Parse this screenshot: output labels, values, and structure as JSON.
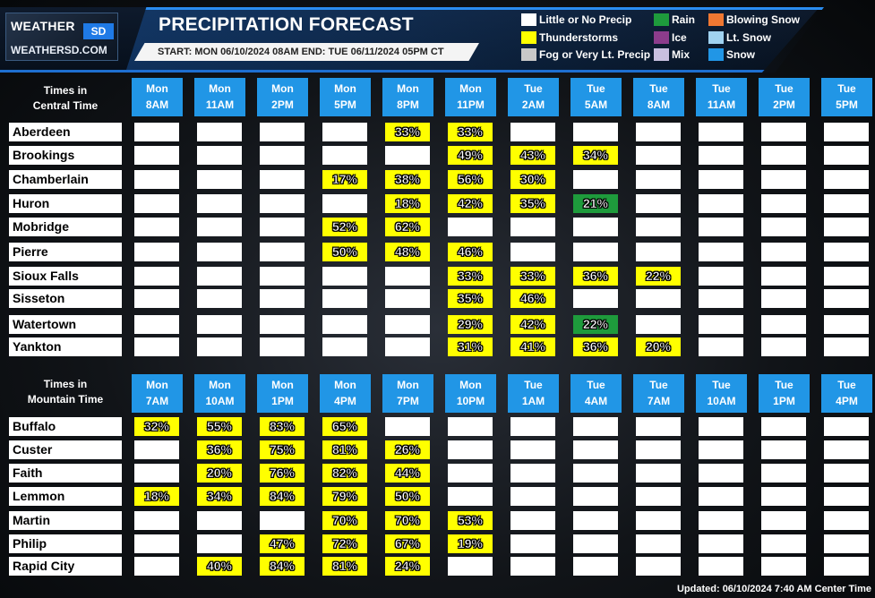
{
  "header": {
    "logo_weather": "WEATHER",
    "logo_sd": "SD",
    "logo_site": "WEATHERSD.COM",
    "title": "PRECIPITATION FORECAST",
    "date_range": "START: MON 06/10/2024 08AM  END: TUE 06/11/2024 05PM CT"
  },
  "legend": [
    {
      "label": "Little or No Precip",
      "color": "#ffffff"
    },
    {
      "label": "Thunderstorms",
      "color": "#ffff00"
    },
    {
      "label": "Fog or Very Lt. Precip",
      "color": "#c8c8c8"
    },
    {
      "label": "Rain",
      "color": "#1e9b3c"
    },
    {
      "label": "Ice",
      "color": "#8c3c8c"
    },
    {
      "label": "Mix",
      "color": "#c8c0e0"
    },
    {
      "label": "Blowing Snow",
      "color": "#f07832"
    },
    {
      "label": "Lt. Snow",
      "color": "#a0d2f0"
    },
    {
      "label": "Snow",
      "color": "#2196e6"
    }
  ],
  "colors": {
    "none": "#ffffff",
    "thunderstorms": "#ffff00",
    "rain": "#1e9b3c",
    "header_blue": "#2196e6"
  },
  "central": {
    "corner_line1": "Times in",
    "corner_line2": "Central Time",
    "columns": [
      {
        "day": "Mon",
        "time": "8AM"
      },
      {
        "day": "Mon",
        "time": "11AM"
      },
      {
        "day": "Mon",
        "time": "2PM"
      },
      {
        "day": "Mon",
        "time": "5PM"
      },
      {
        "day": "Mon",
        "time": "8PM"
      },
      {
        "day": "Mon",
        "time": "11PM"
      },
      {
        "day": "Tue",
        "time": "2AM"
      },
      {
        "day": "Tue",
        "time": "5AM"
      },
      {
        "day": "Tue",
        "time": "8AM"
      },
      {
        "day": "Tue",
        "time": "11AM"
      },
      {
        "day": "Tue",
        "time": "2PM"
      },
      {
        "day": "Tue",
        "time": "5PM"
      }
    ],
    "rows": [
      {
        "name": "Aberdeen",
        "cells": [
          [
            "",
            ""
          ],
          [
            "",
            ""
          ],
          [
            "",
            ""
          ],
          [
            "",
            ""
          ],
          [
            "33%",
            "T"
          ],
          [
            "33%",
            "T"
          ],
          [
            "",
            ""
          ],
          [
            "",
            ""
          ],
          [
            "",
            ""
          ],
          [
            "",
            ""
          ],
          [
            "",
            ""
          ],
          [
            "",
            ""
          ]
        ]
      },
      {
        "name": "Brookings",
        "cells": [
          [
            "",
            ""
          ],
          [
            "",
            ""
          ],
          [
            "",
            ""
          ],
          [
            "",
            ""
          ],
          [
            "",
            ""
          ],
          [
            "49%",
            "T"
          ],
          [
            "43%",
            "T"
          ],
          [
            "34%",
            "T"
          ],
          [
            "",
            ""
          ],
          [
            "",
            ""
          ],
          [
            "",
            ""
          ],
          [
            "",
            ""
          ]
        ]
      },
      {
        "name": "Chamberlain",
        "cells": [
          [
            "",
            ""
          ],
          [
            "",
            ""
          ],
          [
            "",
            ""
          ],
          [
            "17%",
            "T"
          ],
          [
            "38%",
            "T"
          ],
          [
            "56%",
            "T"
          ],
          [
            "30%",
            "T"
          ],
          [
            "",
            ""
          ],
          [
            "",
            ""
          ],
          [
            "",
            ""
          ],
          [
            "",
            ""
          ],
          [
            "",
            ""
          ]
        ]
      },
      {
        "name": "Huron",
        "cells": [
          [
            "",
            ""
          ],
          [
            "",
            ""
          ],
          [
            "",
            ""
          ],
          [
            "",
            ""
          ],
          [
            "18%",
            "T"
          ],
          [
            "42%",
            "T"
          ],
          [
            "35%",
            "T"
          ],
          [
            "21%",
            "R"
          ],
          [
            "",
            ""
          ],
          [
            "",
            ""
          ],
          [
            "",
            ""
          ],
          [
            "",
            ""
          ]
        ]
      },
      {
        "name": "Mobridge",
        "cells": [
          [
            "",
            ""
          ],
          [
            "",
            ""
          ],
          [
            "",
            ""
          ],
          [
            "52%",
            "T"
          ],
          [
            "62%",
            "T"
          ],
          [
            "",
            ""
          ],
          [
            "",
            ""
          ],
          [
            "",
            ""
          ],
          [
            "",
            ""
          ],
          [
            "",
            ""
          ],
          [
            "",
            ""
          ],
          [
            "",
            ""
          ]
        ]
      },
      {
        "name": "Pierre",
        "cells": [
          [
            "",
            ""
          ],
          [
            "",
            ""
          ],
          [
            "",
            ""
          ],
          [
            "50%",
            "T"
          ],
          [
            "48%",
            "T"
          ],
          [
            "46%",
            "T"
          ],
          [
            "",
            ""
          ],
          [
            "",
            ""
          ],
          [
            "",
            ""
          ],
          [
            "",
            ""
          ],
          [
            "",
            ""
          ],
          [
            "",
            ""
          ]
        ]
      },
      {
        "name": "Sioux Falls",
        "cells": [
          [
            "",
            ""
          ],
          [
            "",
            ""
          ],
          [
            "",
            ""
          ],
          [
            "",
            ""
          ],
          [
            "",
            ""
          ],
          [
            "33%",
            "T"
          ],
          [
            "33%",
            "T"
          ],
          [
            "36%",
            "T"
          ],
          [
            "22%",
            "T"
          ],
          [
            "",
            ""
          ],
          [
            "",
            ""
          ],
          [
            "",
            ""
          ]
        ]
      },
      {
        "name": "Sisseton",
        "cells": [
          [
            "",
            ""
          ],
          [
            "",
            ""
          ],
          [
            "",
            ""
          ],
          [
            "",
            ""
          ],
          [
            "",
            ""
          ],
          [
            "35%",
            "T"
          ],
          [
            "46%",
            "T"
          ],
          [
            "",
            ""
          ],
          [
            "",
            ""
          ],
          [
            "",
            ""
          ],
          [
            "",
            ""
          ],
          [
            "",
            ""
          ]
        ]
      },
      {
        "name": "Watertown",
        "cells": [
          [
            "",
            ""
          ],
          [
            "",
            ""
          ],
          [
            "",
            ""
          ],
          [
            "",
            ""
          ],
          [
            "",
            ""
          ],
          [
            "29%",
            "T"
          ],
          [
            "42%",
            "T"
          ],
          [
            "22%",
            "R"
          ],
          [
            "",
            ""
          ],
          [
            "",
            ""
          ],
          [
            "",
            ""
          ],
          [
            "",
            ""
          ]
        ]
      },
      {
        "name": "Yankton",
        "cells": [
          [
            "",
            ""
          ],
          [
            "",
            ""
          ],
          [
            "",
            ""
          ],
          [
            "",
            ""
          ],
          [
            "",
            ""
          ],
          [
            "31%",
            "T"
          ],
          [
            "41%",
            "T"
          ],
          [
            "36%",
            "T"
          ],
          [
            "20%",
            "T"
          ],
          [
            "",
            ""
          ],
          [
            "",
            ""
          ],
          [
            "",
            ""
          ]
        ]
      }
    ]
  },
  "mountain": {
    "corner_line1": "Times in",
    "corner_line2": "Mountain Time",
    "columns": [
      {
        "day": "Mon",
        "time": "7AM"
      },
      {
        "day": "Mon",
        "time": "10AM"
      },
      {
        "day": "Mon",
        "time": "1PM"
      },
      {
        "day": "Mon",
        "time": "4PM"
      },
      {
        "day": "Mon",
        "time": "7PM"
      },
      {
        "day": "Mon",
        "time": "10PM"
      },
      {
        "day": "Tue",
        "time": "1AM"
      },
      {
        "day": "Tue",
        "time": "4AM"
      },
      {
        "day": "Tue",
        "time": "7AM"
      },
      {
        "day": "Tue",
        "time": "10AM"
      },
      {
        "day": "Tue",
        "time": "1PM"
      },
      {
        "day": "Tue",
        "time": "4PM"
      }
    ],
    "rows": [
      {
        "name": "Buffalo",
        "cells": [
          [
            "32%",
            "T"
          ],
          [
            "55%",
            "T"
          ],
          [
            "83%",
            "T"
          ],
          [
            "65%",
            "T"
          ],
          [
            "",
            ""
          ],
          [
            "",
            ""
          ],
          [
            "",
            ""
          ],
          [
            "",
            ""
          ],
          [
            "",
            ""
          ],
          [
            "",
            ""
          ],
          [
            "",
            ""
          ],
          [
            "",
            ""
          ]
        ]
      },
      {
        "name": "Custer",
        "cells": [
          [
            "",
            ""
          ],
          [
            "36%",
            "T"
          ],
          [
            "75%",
            "T"
          ],
          [
            "81%",
            "T"
          ],
          [
            "26%",
            "T"
          ],
          [
            "",
            ""
          ],
          [
            "",
            ""
          ],
          [
            "",
            ""
          ],
          [
            "",
            ""
          ],
          [
            "",
            ""
          ],
          [
            "",
            ""
          ],
          [
            "",
            ""
          ]
        ]
      },
      {
        "name": "Faith",
        "cells": [
          [
            "",
            ""
          ],
          [
            "20%",
            "T"
          ],
          [
            "76%",
            "T"
          ],
          [
            "82%",
            "T"
          ],
          [
            "44%",
            "T"
          ],
          [
            "",
            ""
          ],
          [
            "",
            ""
          ],
          [
            "",
            ""
          ],
          [
            "",
            ""
          ],
          [
            "",
            ""
          ],
          [
            "",
            ""
          ],
          [
            "",
            ""
          ]
        ]
      },
      {
        "name": "Lemmon",
        "cells": [
          [
            "18%",
            "T"
          ],
          [
            "34%",
            "T"
          ],
          [
            "84%",
            "T"
          ],
          [
            "79%",
            "T"
          ],
          [
            "50%",
            "T"
          ],
          [
            "",
            ""
          ],
          [
            "",
            ""
          ],
          [
            "",
            ""
          ],
          [
            "",
            ""
          ],
          [
            "",
            ""
          ],
          [
            "",
            ""
          ],
          [
            "",
            ""
          ]
        ]
      },
      {
        "name": "Martin",
        "cells": [
          [
            "",
            ""
          ],
          [
            "",
            ""
          ],
          [
            "",
            ""
          ],
          [
            "70%",
            "T"
          ],
          [
            "70%",
            "T"
          ],
          [
            "53%",
            "T"
          ],
          [
            "",
            ""
          ],
          [
            "",
            ""
          ],
          [
            "",
            ""
          ],
          [
            "",
            ""
          ],
          [
            "",
            ""
          ],
          [
            "",
            ""
          ]
        ]
      },
      {
        "name": "Philip",
        "cells": [
          [
            "",
            ""
          ],
          [
            "",
            ""
          ],
          [
            "47%",
            "T"
          ],
          [
            "72%",
            "T"
          ],
          [
            "67%",
            "T"
          ],
          [
            "19%",
            "T"
          ],
          [
            "",
            ""
          ],
          [
            "",
            ""
          ],
          [
            "",
            ""
          ],
          [
            "",
            ""
          ],
          [
            "",
            ""
          ],
          [
            "",
            ""
          ]
        ]
      },
      {
        "name": "Rapid City",
        "cells": [
          [
            "",
            ""
          ],
          [
            "40%",
            "T"
          ],
          [
            "84%",
            "T"
          ],
          [
            "81%",
            "T"
          ],
          [
            "24%",
            "T"
          ],
          [
            "",
            ""
          ],
          [
            "",
            ""
          ],
          [
            "",
            ""
          ],
          [
            "",
            ""
          ],
          [
            "",
            ""
          ],
          [
            "",
            ""
          ],
          [
            "",
            ""
          ]
        ]
      }
    ]
  },
  "footer": {
    "updated": "Updated: 06/10/2024 7:40 AM Center Time"
  }
}
